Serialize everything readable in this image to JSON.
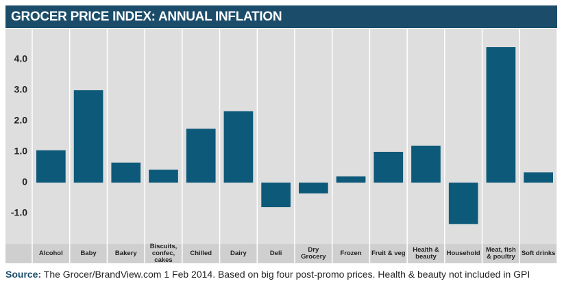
{
  "chart_data": {
    "type": "bar",
    "title": "GROCER PRICE INDEX: ANNUAL INFLATION",
    "categories": [
      "Alcohol",
      "Baby",
      "Bakery",
      "Biscuits, confec, cakes",
      "Chilled",
      "Dairy",
      "Deli",
      "Dry Grocery",
      "Frozen",
      "Fruit & veg",
      "Health & beauty",
      "Household",
      "Meat, fish & poultry",
      "Soft drinks"
    ],
    "values": [
      1.05,
      3.0,
      0.65,
      0.42,
      1.75,
      2.32,
      -0.8,
      -0.35,
      0.2,
      1.0,
      1.2,
      -1.35,
      4.4,
      0.33
    ],
    "color": "#0d5979",
    "ylim": [
      -2,
      5
    ],
    "yticks": [
      {
        "value": -1,
        "label": "-1.0"
      },
      0,
      {
        "value": 1,
        "label": "1.0"
      },
      {
        "value": 2,
        "label": "2.0"
      },
      {
        "value": 3,
        "label": "3.0"
      },
      {
        "value": 4,
        "label": "4.0"
      }
    ],
    "source_label": "Source:",
    "source_text": "The Grocer/BrandView.com 1 Feb 2014. Based on big four post-promo prices. Health & beauty not included in GPI"
  }
}
